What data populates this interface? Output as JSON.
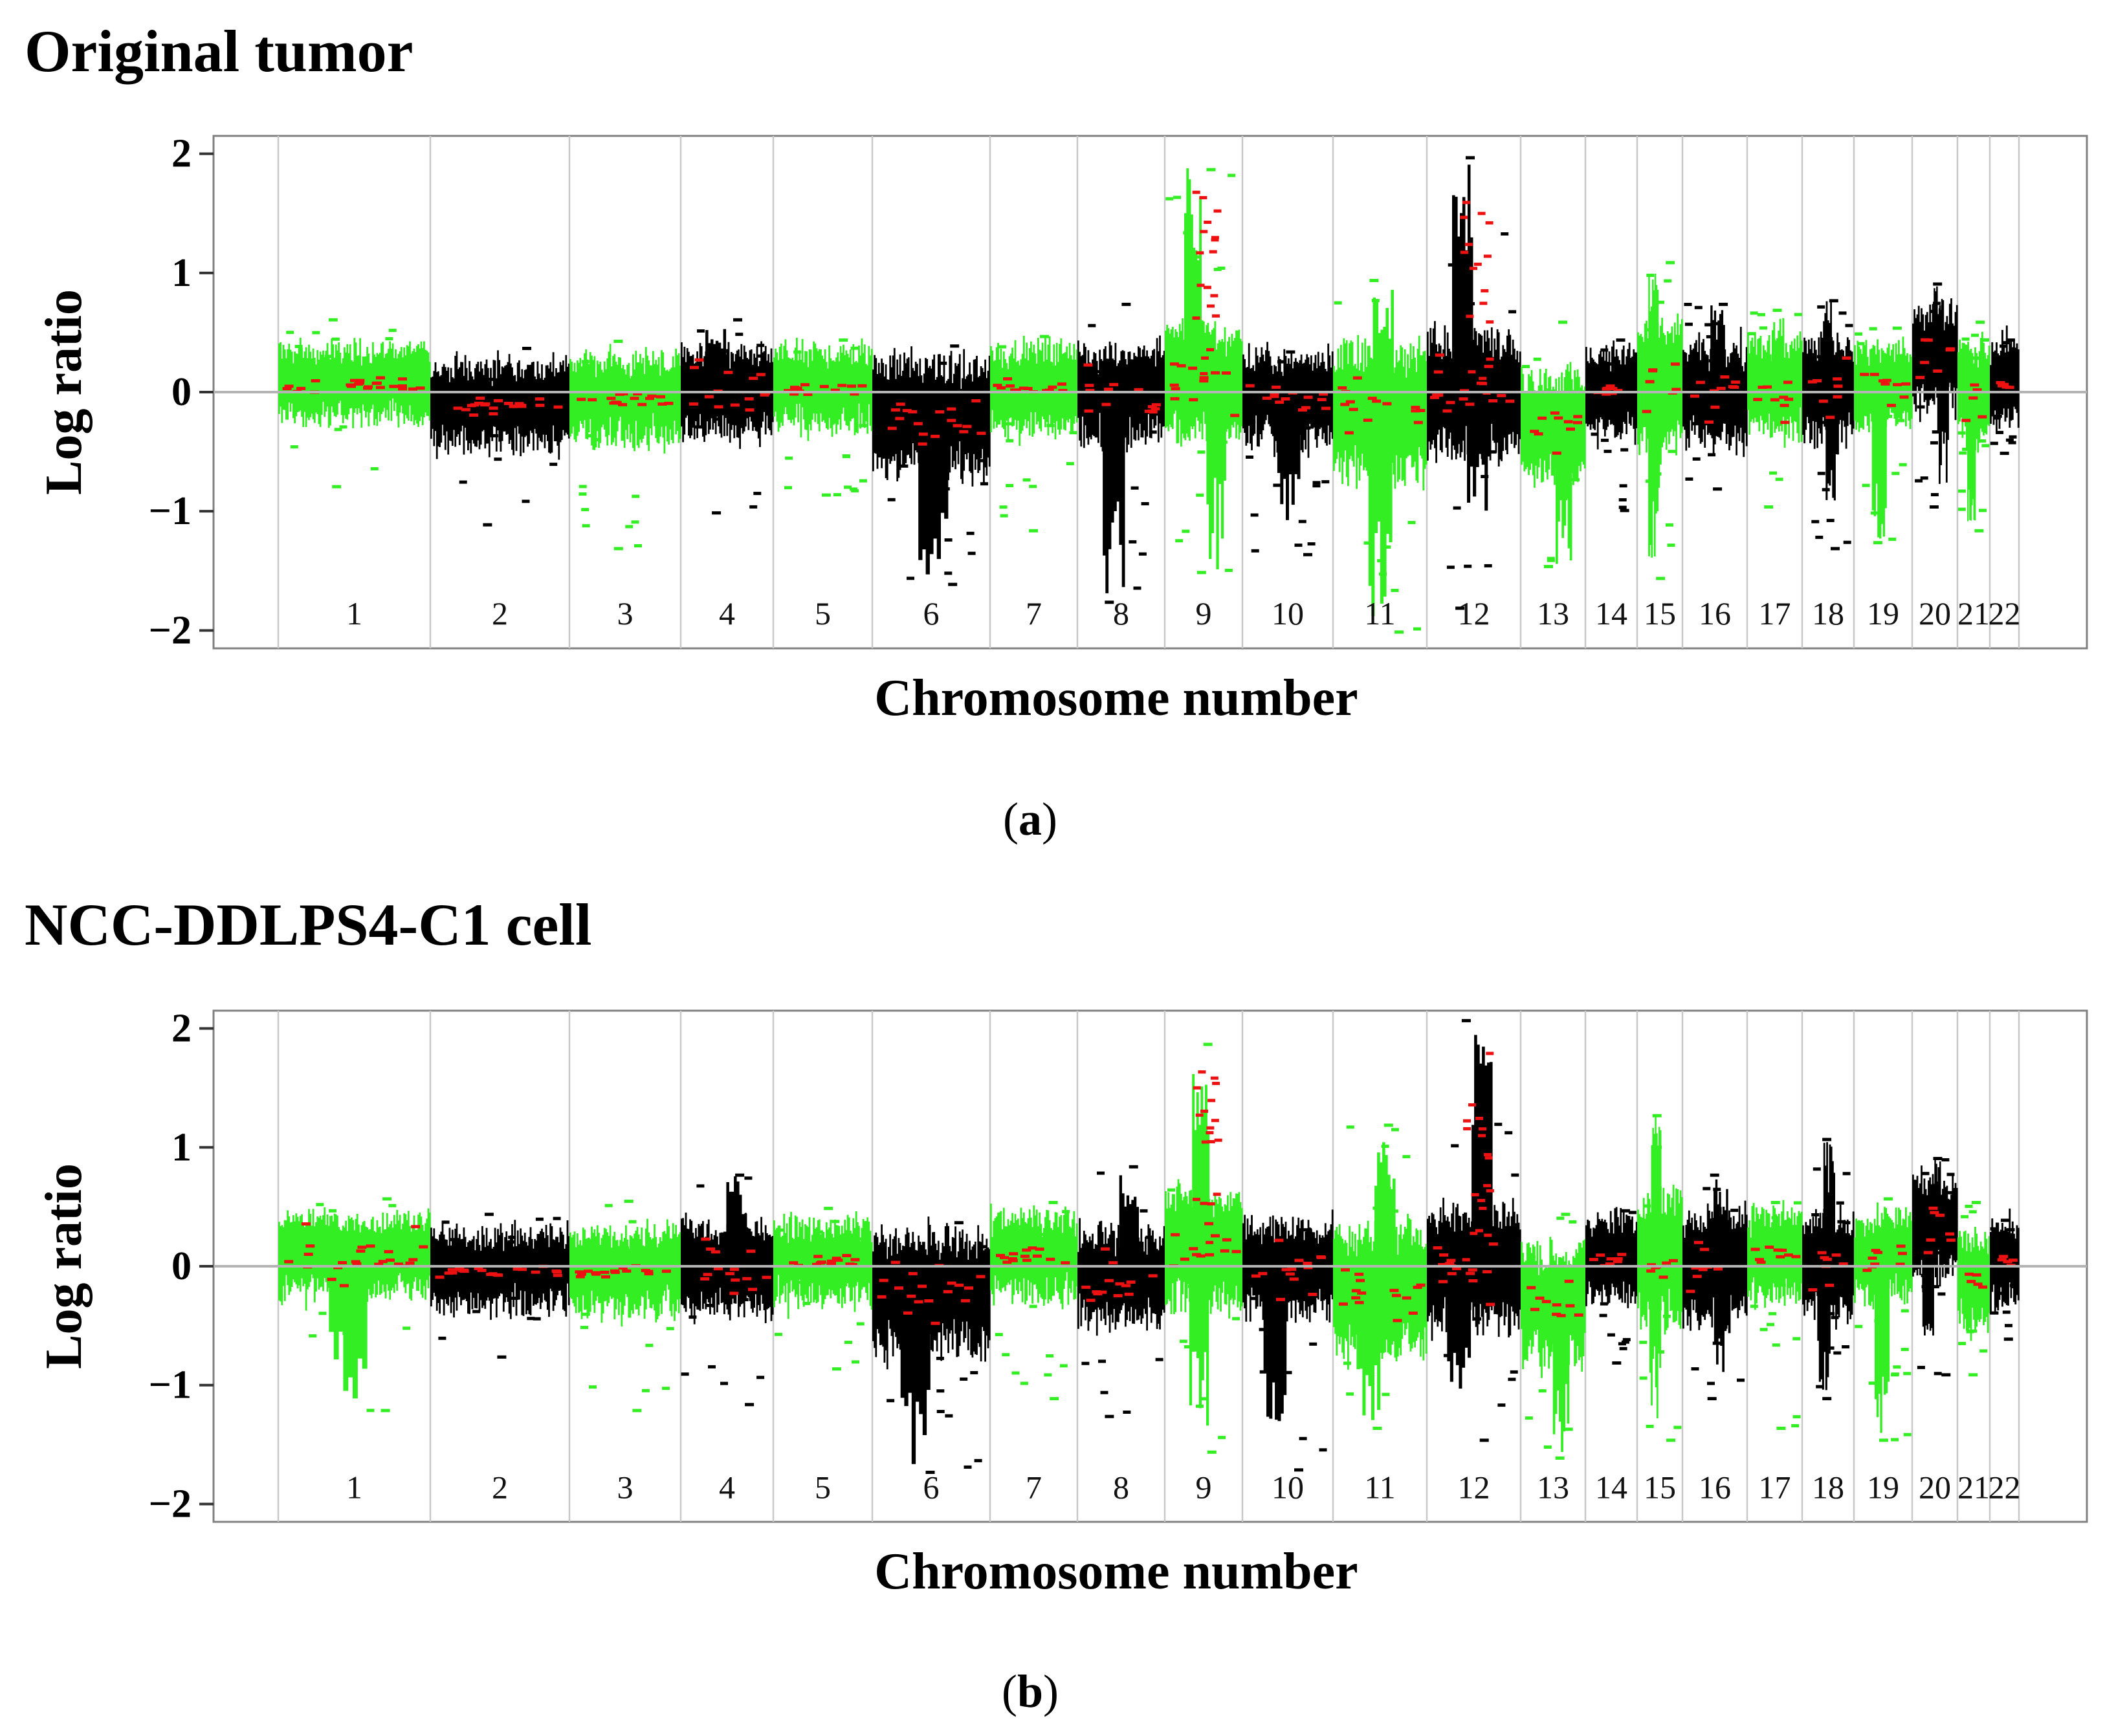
{
  "colors": {
    "black_segment": "#000000",
    "green_segment": "#33ee22",
    "segment_mean": "#ee1111",
    "frame": "#808080",
    "divider": "#c8c8c8",
    "baseline": "#b4b4b4"
  },
  "chart_data": [
    {
      "panel": "a",
      "type": "scatter",
      "title": "Original tumor",
      "caption_letter": "a",
      "caption_open": "(",
      "caption_close": ")",
      "xlabel": "Chromosome number",
      "ylabel": "Log ratio",
      "ylim": [
        -2.15,
        2.15
      ],
      "yticks": [
        {
          "value": 2,
          "label": "2"
        },
        {
          "value": 1,
          "label": "1"
        },
        {
          "value": 0,
          "label": "0"
        },
        {
          "value": -1,
          "label": "−1"
        },
        {
          "value": -2,
          "label": "−2"
        }
      ],
      "chromosomes": [
        {
          "label": "1",
          "color": "green",
          "mean": 0.08,
          "spread": 0.26,
          "extremes": [
            0.62,
            -0.78
          ],
          "peak_up": null,
          "peak_down": null
        },
        {
          "label": "2",
          "color": "black",
          "mean": -0.1,
          "spread": 0.3,
          "extremes": [
            0.38,
            -1.1
          ],
          "peak_up": null,
          "peak_down": null
        },
        {
          "label": "3",
          "color": "green",
          "mean": -0.05,
          "spread": 0.3,
          "extremes": [
            0.44,
            -1.3
          ],
          "peak_up": null,
          "peak_down": null
        },
        {
          "label": "4",
          "color": "black",
          "mean": 0.0,
          "spread": 0.3,
          "extremes": [
            0.62,
            -1.0
          ],
          "peak_up": 0.62,
          "peak_down": null
        },
        {
          "label": "5",
          "color": "green",
          "mean": 0.04,
          "spread": 0.28,
          "extremes": [
            0.45,
            -0.85
          ],
          "peak_up": null,
          "peak_down": null
        },
        {
          "label": "6",
          "color": "black",
          "mean": -0.2,
          "spread": 0.4,
          "extremes": [
            0.4,
            -1.6
          ],
          "peak_up": null,
          "peak_down": -1.6
        },
        {
          "label": "7",
          "color": "green",
          "mean": 0.04,
          "spread": 0.3,
          "extremes": [
            0.48,
            -1.15
          ],
          "peak_up": null,
          "peak_down": null
        },
        {
          "label": "8",
          "color": "black",
          "mean": 0.0,
          "spread": 0.33,
          "extremes": [
            0.75,
            -1.75
          ],
          "peak_up": null,
          "peak_down": -1.75
        },
        {
          "label": "9",
          "color": "green",
          "mean": 0.1,
          "spread": 0.38,
          "extremes": [
            1.88,
            -1.5
          ],
          "peak_up": 1.88,
          "peak_down": -1.5
        },
        {
          "label": "10",
          "color": "black",
          "mean": -0.05,
          "spread": 0.32,
          "extremes": [
            0.35,
            -1.35
          ],
          "peak_up": null,
          "peak_down": -1.2
        },
        {
          "label": "11",
          "color": "green",
          "mean": -0.15,
          "spread": 0.45,
          "extremes": [
            0.95,
            -2.0
          ],
          "peak_up": 0.9,
          "peak_down": -2.0
        },
        {
          "label": "12",
          "color": "black",
          "mean": 0.0,
          "spread": 0.42,
          "extremes": [
            1.98,
            -1.8
          ],
          "peak_up": 1.98,
          "peak_down": -1.0
        },
        {
          "label": "13",
          "color": "green",
          "mean": -0.28,
          "spread": 0.38,
          "extremes": [
            0.6,
            -1.45
          ],
          "peak_up": null,
          "peak_down": -1.45
        },
        {
          "label": "14",
          "color": "black",
          "mean": 0.02,
          "spread": 0.3,
          "extremes": [
            0.45,
            -0.98
          ],
          "peak_up": null,
          "peak_down": null
        },
        {
          "label": "15",
          "color": "green",
          "mean": 0.05,
          "spread": 0.45,
          "extremes": [
            1.1,
            -1.55
          ],
          "peak_up": 1.1,
          "peak_down": -1.4
        },
        {
          "label": "16",
          "color": "black",
          "mean": -0.02,
          "spread": 0.35,
          "extremes": [
            0.75,
            -0.8
          ],
          "peak_up": 0.75,
          "peak_down": null
        },
        {
          "label": "17",
          "color": "green",
          "mean": 0.06,
          "spread": 0.32,
          "extremes": [
            0.7,
            -0.95
          ],
          "peak_up": 0.7,
          "peak_down": null
        },
        {
          "label": "18",
          "color": "black",
          "mean": 0.04,
          "spread": 0.35,
          "extremes": [
            0.78,
            -1.3
          ],
          "peak_up": 0.78,
          "peak_down": -0.95
        },
        {
          "label": "19",
          "color": "green",
          "mean": 0.06,
          "spread": 0.3,
          "extremes": [
            0.55,
            -1.25
          ],
          "peak_up": null,
          "peak_down": -1.25
        },
        {
          "label": "20",
          "color": "black",
          "mean": 0.3,
          "spread": 0.35,
          "extremes": [
            0.92,
            -0.95
          ],
          "peak_up": 0.92,
          "peak_down": -0.95
        },
        {
          "label": "21",
          "color": "green",
          "mean": 0.0,
          "spread": 0.35,
          "extremes": [
            0.6,
            -1.15
          ],
          "peak_up": null,
          "peak_down": -1.15
        },
        {
          "label": "22",
          "color": "black",
          "mean": 0.08,
          "spread": 0.3,
          "extremes": [
            0.45,
            -0.5
          ],
          "peak_up": null,
          "peak_down": null
        }
      ]
    },
    {
      "panel": "b",
      "type": "scatter",
      "title": "NCC-DDLPS4-C1 cell",
      "caption_letter": "b",
      "caption_open": "(",
      "caption_close": ")",
      "xlabel": "Chromosome number",
      "ylabel": "Log ratio",
      "ylim": [
        -2.15,
        2.15
      ],
      "yticks": [
        {
          "value": 2,
          "label": "2"
        },
        {
          "value": 1,
          "label": "1"
        },
        {
          "value": 0,
          "label": "0"
        },
        {
          "value": -1,
          "label": "−1"
        },
        {
          "value": -2,
          "label": "−2"
        }
      ],
      "chromosomes": [
        {
          "label": "1",
          "color": "green",
          "mean": 0.1,
          "spread": 0.28,
          "extremes": [
            0.58,
            -1.2
          ],
          "peak_up": null,
          "peak_down": -1.2
        },
        {
          "label": "2",
          "color": "black",
          "mean": -0.03,
          "spread": 0.28,
          "extremes": [
            0.45,
            -0.75
          ],
          "peak_up": null,
          "peak_down": null
        },
        {
          "label": "3",
          "color": "green",
          "mean": -0.03,
          "spread": 0.3,
          "extremes": [
            0.56,
            -1.2
          ],
          "peak_up": null,
          "peak_down": null
        },
        {
          "label": "4",
          "color": "black",
          "mean": 0.0,
          "spread": 0.32,
          "extremes": [
            0.78,
            -1.15
          ],
          "peak_up": 0.78,
          "peak_down": null
        },
        {
          "label": "5",
          "color": "green",
          "mean": 0.05,
          "spread": 0.28,
          "extremes": [
            0.5,
            -0.85
          ],
          "peak_up": null,
          "peak_down": null
        },
        {
          "label": "6",
          "color": "black",
          "mean": -0.2,
          "spread": 0.42,
          "extremes": [
            0.38,
            -1.72
          ],
          "peak_up": null,
          "peak_down": -1.72
        },
        {
          "label": "7",
          "color": "green",
          "mean": 0.1,
          "spread": 0.3,
          "extremes": [
            0.55,
            -1.1
          ],
          "peak_up": null,
          "peak_down": null
        },
        {
          "label": "8",
          "color": "black",
          "mean": -0.08,
          "spread": 0.32,
          "extremes": [
            0.85,
            -1.25
          ],
          "peak_up": 0.85,
          "peak_down": null
        },
        {
          "label": "9",
          "color": "green",
          "mean": 0.15,
          "spread": 0.4,
          "extremes": [
            1.88,
            -1.55
          ],
          "peak_up": 1.88,
          "peak_down": -1.5
        },
        {
          "label": "10",
          "color": "black",
          "mean": 0.0,
          "spread": 0.32,
          "extremes": [
            0.32,
            -1.7
          ],
          "peak_up": null,
          "peak_down": -1.7
        },
        {
          "label": "11",
          "color": "green",
          "mean": -0.2,
          "spread": 0.45,
          "extremes": [
            1.2,
            -1.35
          ],
          "peak_up": 1.05,
          "peak_down": -1.3
        },
        {
          "label": "12",
          "color": "black",
          "mean": 0.0,
          "spread": 0.42,
          "extremes": [
            2.08,
            -1.45
          ],
          "peak_up": 2.08,
          "peak_down": -1.1
        },
        {
          "label": "13",
          "color": "green",
          "mean": -0.3,
          "spread": 0.4,
          "extremes": [
            0.45,
            -1.6
          ],
          "peak_up": null,
          "peak_down": -1.6
        },
        {
          "label": "14",
          "color": "black",
          "mean": 0.08,
          "spread": 0.3,
          "extremes": [
            0.48,
            -0.8
          ],
          "peak_up": null,
          "peak_down": null
        },
        {
          "label": "15",
          "color": "green",
          "mean": 0.1,
          "spread": 0.45,
          "extremes": [
            1.28,
            -1.45
          ],
          "peak_up": 1.28,
          "peak_down": -1.4
        },
        {
          "label": "16",
          "color": "black",
          "mean": 0.0,
          "spread": 0.38,
          "extremes": [
            0.78,
            -1.1
          ],
          "peak_up": 0.78,
          "peak_down": -0.9
        },
        {
          "label": "17",
          "color": "green",
          "mean": 0.1,
          "spread": 0.32,
          "extremes": [
            0.55,
            -1.35
          ],
          "peak_up": null,
          "peak_down": null
        },
        {
          "label": "18",
          "color": "black",
          "mean": 0.0,
          "spread": 0.35,
          "extremes": [
            1.08,
            -1.1
          ],
          "peak_up": 1.08,
          "peak_down": -1.05
        },
        {
          "label": "19",
          "color": "green",
          "mean": 0.08,
          "spread": 0.3,
          "extremes": [
            0.58,
            -1.45
          ],
          "peak_up": null,
          "peak_down": -1.45
        },
        {
          "label": "20",
          "color": "black",
          "mean": 0.35,
          "spread": 0.35,
          "extremes": [
            0.92,
            -0.9
          ],
          "peak_up": 0.92,
          "peak_down": -0.9
        },
        {
          "label": "21",
          "color": "green",
          "mean": -0.1,
          "spread": 0.35,
          "extremes": [
            0.55,
            -0.9
          ],
          "peak_up": null,
          "peak_down": null
        },
        {
          "label": "22",
          "color": "black",
          "mean": 0.05,
          "spread": 0.3,
          "extremes": [
            0.4,
            -0.6
          ],
          "peak_up": null,
          "peak_down": null
        }
      ]
    }
  ]
}
